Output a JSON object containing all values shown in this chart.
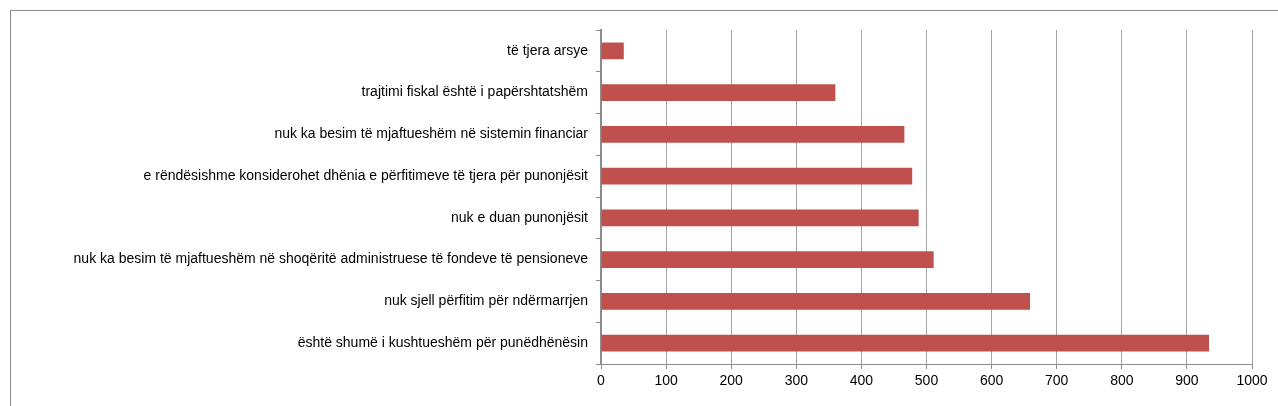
{
  "chart_data": {
    "type": "bar",
    "orientation": "horizontal",
    "categories": [
      "të tjera arsye",
      "trajtimi fiskal është i papërshtatshëm",
      "nuk ka besim të mjaftueshëm në sistemin financiar",
      "e rëndësishme konsiderohet dhënia e përfitimeve të tjera për punonjësit",
      "nuk e duan punonjësit",
      "nuk ka besim të mjaftueshëm në shoqëritë administruese të fondeve të pensioneve",
      "nuk sjell përfitim për ndërmarrjen",
      "është shumë i kushtueshëm për punëdhënësin"
    ],
    "values": [
      35,
      360,
      466,
      478,
      488,
      511,
      659,
      934
    ],
    "color": "#c0504d",
    "xlim": [
      0,
      1000
    ],
    "xticks": [
      0,
      100,
      200,
      300,
      400,
      500,
      600,
      700,
      800,
      900,
      1000
    ],
    "grid": "x"
  }
}
